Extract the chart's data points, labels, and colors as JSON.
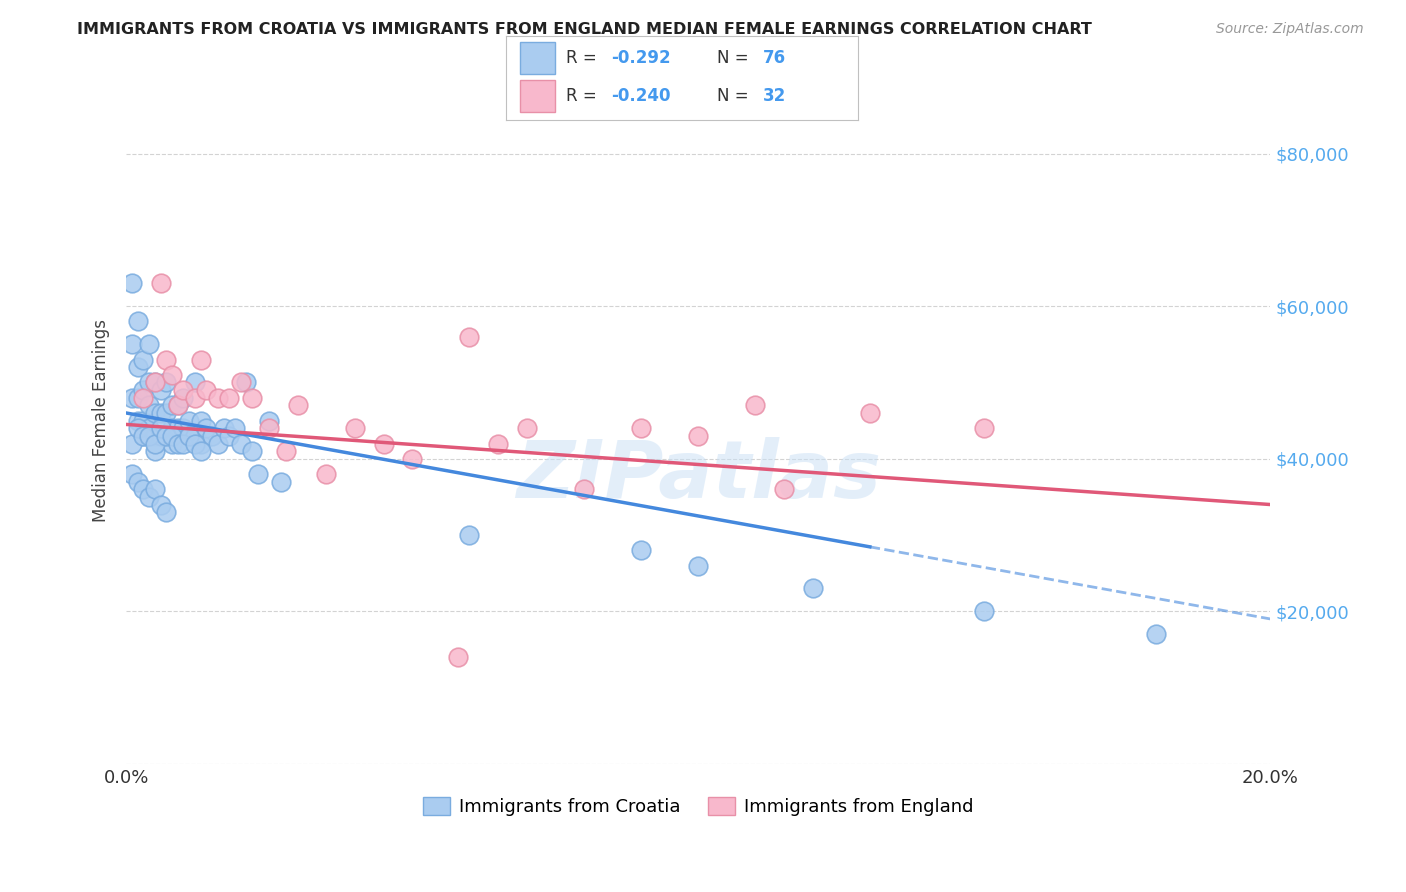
{
  "title": "IMMIGRANTS FROM CROATIA VS IMMIGRANTS FROM ENGLAND MEDIAN FEMALE EARNINGS CORRELATION CHART",
  "source": "Source: ZipAtlas.com",
  "ylabel": "Median Female Earnings",
  "xlim": [
    0.0,
    0.2
  ],
  "ylim": [
    0,
    90000
  ],
  "yticks": [
    0,
    20000,
    40000,
    60000,
    80000
  ],
  "ytick_labels": [
    "",
    "$20,000",
    "$40,000",
    "$60,000",
    "$80,000"
  ],
  "croatia_color": "#aaccf0",
  "croatia_edge": "#7aacdf",
  "england_color": "#f8b8cc",
  "england_edge": "#e890a8",
  "regression_croatia_color": "#4488dd",
  "regression_england_color": "#e05878",
  "watermark": "ZIPatlas",
  "legend_R_croatia": "-0.292",
  "legend_N_croatia": "76",
  "legend_R_england": "-0.240",
  "legend_N_england": "32",
  "croatia_x": [
    0.001,
    0.001,
    0.001,
    0.002,
    0.002,
    0.002,
    0.002,
    0.003,
    0.003,
    0.003,
    0.003,
    0.004,
    0.004,
    0.004,
    0.004,
    0.005,
    0.005,
    0.005,
    0.005,
    0.006,
    0.006,
    0.006,
    0.007,
    0.007,
    0.007,
    0.008,
    0.008,
    0.008,
    0.009,
    0.009,
    0.01,
    0.01,
    0.011,
    0.011,
    0.012,
    0.012,
    0.013,
    0.013,
    0.014,
    0.015,
    0.016,
    0.017,
    0.018,
    0.019,
    0.02,
    0.021,
    0.022,
    0.023,
    0.025,
    0.027,
    0.001,
    0.002,
    0.003,
    0.004,
    0.005,
    0.006,
    0.007,
    0.008,
    0.009,
    0.01,
    0.011,
    0.012,
    0.013,
    0.001,
    0.002,
    0.003,
    0.004,
    0.005,
    0.006,
    0.007,
    0.06,
    0.09,
    0.1,
    0.12,
    0.15,
    0.18
  ],
  "croatia_y": [
    63000,
    55000,
    48000,
    58000,
    52000,
    48000,
    45000,
    53000,
    49000,
    45000,
    43000,
    55000,
    50000,
    47000,
    44000,
    50000,
    46000,
    43000,
    41000,
    49000,
    46000,
    43000,
    50000,
    46000,
    43000,
    47000,
    44000,
    42000,
    47000,
    44000,
    48000,
    44000,
    45000,
    43000,
    50000,
    43000,
    45000,
    42000,
    44000,
    43000,
    42000,
    44000,
    43000,
    44000,
    42000,
    50000,
    41000,
    38000,
    45000,
    37000,
    42000,
    44000,
    43000,
    43000,
    42000,
    44000,
    43000,
    43000,
    42000,
    42000,
    43000,
    42000,
    41000,
    38000,
    37000,
    36000,
    35000,
    36000,
    34000,
    33000,
    30000,
    28000,
    26000,
    23000,
    20000,
    17000
  ],
  "england_x": [
    0.003,
    0.005,
    0.006,
    0.007,
    0.008,
    0.009,
    0.01,
    0.012,
    0.013,
    0.014,
    0.016,
    0.018,
    0.02,
    0.022,
    0.025,
    0.028,
    0.03,
    0.035,
    0.04,
    0.045,
    0.05,
    0.06,
    0.065,
    0.07,
    0.08,
    0.09,
    0.1,
    0.11,
    0.13,
    0.15,
    0.058,
    0.115
  ],
  "england_y": [
    48000,
    50000,
    63000,
    53000,
    51000,
    47000,
    49000,
    48000,
    53000,
    49000,
    48000,
    48000,
    50000,
    48000,
    44000,
    41000,
    47000,
    38000,
    44000,
    42000,
    40000,
    56000,
    42000,
    44000,
    36000,
    44000,
    43000,
    47000,
    46000,
    44000,
    14000,
    36000
  ],
  "cr_line_x0": 0.0,
  "cr_line_x1": 0.2,
  "cr_line_y0": 46000,
  "cr_line_y1": 19000,
  "en_line_x0": 0.0,
  "en_line_x1": 0.2,
  "en_line_y0": 44500,
  "en_line_y1": 34000
}
